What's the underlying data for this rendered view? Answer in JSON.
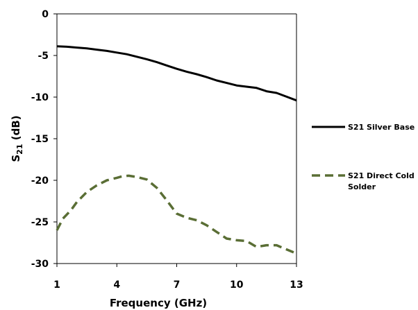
{
  "chart_data": {
    "type": "line",
    "xlabel": "Frequency (GHz)",
    "ylabel_main": "S",
    "ylabel_sub": "21",
    "ylabel_unit": "(dB)",
    "xlim": [
      1,
      13
    ],
    "ylim": [
      -30,
      0
    ],
    "xticks": [
      1,
      4,
      7,
      10,
      13
    ],
    "yticks": [
      0,
      -5,
      -10,
      -15,
      -20,
      -25,
      -30
    ],
    "grid": false,
    "legend_position": "right",
    "series": [
      {
        "name": "S21 Silver Base",
        "color": "#000000",
        "style": "solid",
        "x": [
          1,
          1.5,
          2,
          2.5,
          3,
          3.5,
          4,
          4.5,
          5,
          5.5,
          6,
          6.5,
          7,
          7.5,
          8,
          8.5,
          9,
          9.5,
          10,
          10.5,
          11,
          11.5,
          12,
          12.5,
          13
        ],
        "y": [
          -3.9,
          -3.95,
          -4.05,
          -4.15,
          -4.3,
          -4.45,
          -4.65,
          -4.85,
          -5.15,
          -5.45,
          -5.8,
          -6.2,
          -6.6,
          -6.95,
          -7.25,
          -7.6,
          -8.0,
          -8.3,
          -8.6,
          -8.75,
          -8.9,
          -9.3,
          -9.5,
          -9.95,
          -10.4
        ]
      },
      {
        "name": "S21 Direct Cold Solder",
        "name_lines": [
          "S21 Direct Cold",
          "Solder"
        ],
        "color": "#5a6e35",
        "style": "dashed",
        "x": [
          1,
          1.3,
          1.7,
          2,
          2.5,
          3,
          3.5,
          4,
          4.3,
          4.6,
          5,
          5.5,
          6,
          6.5,
          7,
          7.5,
          8,
          8.5,
          9,
          9.5,
          10,
          10.5,
          11,
          11.5,
          12,
          12.5,
          13
        ],
        "y": [
          -26.0,
          -24.6,
          -23.6,
          -22.6,
          -21.4,
          -20.6,
          -20.0,
          -19.7,
          -19.5,
          -19.45,
          -19.6,
          -19.9,
          -20.9,
          -22.4,
          -24.0,
          -24.5,
          -24.8,
          -25.4,
          -26.2,
          -27.0,
          -27.2,
          -27.3,
          -28.0,
          -27.8,
          -27.8,
          -28.3,
          -28.8
        ]
      }
    ]
  }
}
